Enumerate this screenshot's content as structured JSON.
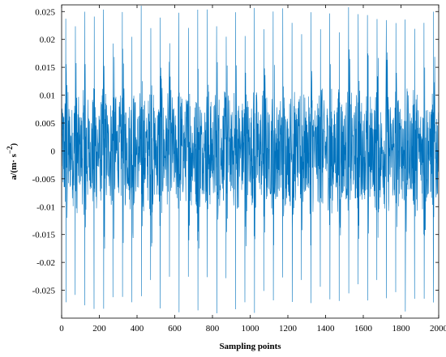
{
  "chart_data": {
    "type": "line",
    "title": "",
    "xlabel": "Sampling points",
    "ylabel_parts": {
      "base": "a/(m· s",
      "exp": "−2",
      "close": ")"
    },
    "xlim": [
      0,
      2000
    ],
    "ylim": [
      -0.03,
      0.0262
    ],
    "xticks": [
      0,
      200,
      400,
      600,
      800,
      1000,
      1200,
      1400,
      1600,
      1800,
      2000
    ],
    "xtick_labels": [
      "0",
      "200",
      "400",
      "600",
      "800",
      "1000",
      "1200",
      "1400",
      "1600",
      "1800",
      "2000"
    ],
    "yticks": [
      -0.025,
      -0.02,
      -0.015,
      -0.01,
      -0.005,
      0,
      0.005,
      0.01,
      0.015,
      0.02,
      0.025
    ],
    "ytick_labels": [
      "-0.025",
      "-0.02",
      "-0.015",
      "-0.01",
      "-0.005",
      "0",
      "0.005",
      "0.01",
      "0.015",
      "0.02",
      "0.025"
    ],
    "grid": false,
    "series": [
      {
        "color": "#0072BD",
        "description_of_signal": "dense oscillation, 2001 samples, amplitude ~±0.013 with periodic impulsive spikes up to about ±0.026 roughly every 100 samples",
        "x_start": 0,
        "x_end": 2000,
        "n_points": 2001,
        "base_amplitude": 0.012,
        "spike_period": 100,
        "spike_peak": 0.0262,
        "spike_trough": -0.03
      }
    ]
  }
}
